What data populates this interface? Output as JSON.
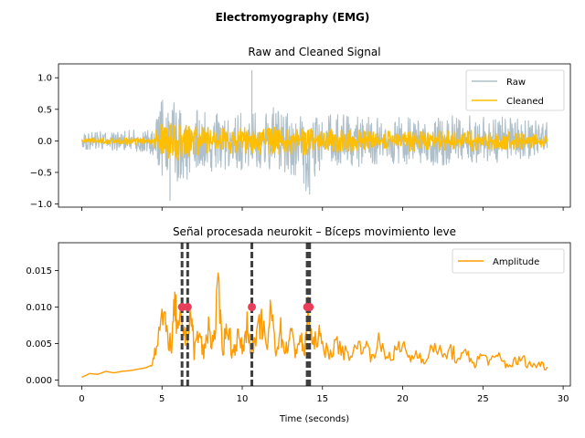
{
  "figure": {
    "suptitle": "Electromyography (EMG)"
  },
  "chart_data": [
    {
      "type": "line",
      "title": "Raw and Cleaned Signal",
      "xlabel": "",
      "ylabel": "",
      "xlim": [
        -1.45,
        30.45
      ],
      "ylim": [
        -1.05,
        1.22
      ],
      "x_ticks": [
        0,
        5,
        10,
        15,
        20,
        25,
        30
      ],
      "y_ticks": [
        -1.0,
        -0.5,
        0.0,
        0.5,
        1.0
      ],
      "y_tick_labels": [
        "−1.0",
        "−0.5",
        "0.0",
        "0.5",
        "1.0"
      ],
      "legend": {
        "position": "top-right",
        "entries": [
          "Raw",
          "Cleaned"
        ]
      },
      "series": [
        {
          "name": "Raw",
          "color": "#aebfc9",
          "envelope": {
            "x": [
              0,
              1,
              2,
              3,
              4,
              4.5,
              5,
              5.5,
              6,
              6.5,
              7,
              8,
              9,
              10,
              11,
              12,
              13,
              14,
              15,
              16,
              18,
              20,
              22,
              24,
              26,
              29
            ],
            "upper": [
              0.15,
              0.15,
              0.15,
              0.17,
              0.18,
              0.25,
              0.7,
              0.6,
              0.62,
              0.55,
              0.5,
              0.45,
              0.42,
              0.5,
              0.45,
              0.55,
              0.45,
              0.4,
              0.35,
              0.5,
              0.38,
              0.38,
              0.38,
              0.45,
              0.4,
              0.3
            ],
            "lower": [
              -0.15,
              -0.15,
              -0.15,
              -0.17,
              -0.18,
              -0.25,
              -0.6,
              -0.75,
              -0.8,
              -0.7,
              -0.5,
              -0.5,
              -0.45,
              -0.5,
              -0.45,
              -0.5,
              -0.6,
              -0.85,
              -0.4,
              -0.45,
              -0.38,
              -0.38,
              -0.4,
              -0.35,
              -0.35,
              -0.3
            ]
          },
          "spikes": [
            {
              "x": 10.6,
              "y": 1.12
            },
            {
              "x": 5.5,
              "y": -0.95
            },
            {
              "x": 14.2,
              "y": -0.85
            }
          ]
        },
        {
          "name": "Cleaned",
          "color": "#ffbe00",
          "envelope": {
            "x": [
              0,
              1,
              2,
              3,
              4,
              4.5,
              5,
              5.5,
              6,
              6.5,
              7,
              8,
              9,
              10,
              11,
              12,
              13,
              14,
              15,
              16,
              18,
              20,
              22,
              24,
              26,
              29
            ],
            "upper": [
              0.05,
              0.05,
              0.05,
              0.06,
              0.07,
              0.12,
              0.3,
              0.28,
              0.3,
              0.26,
              0.24,
              0.22,
              0.2,
              0.23,
              0.21,
              0.24,
              0.2,
              0.2,
              0.16,
              0.2,
              0.16,
              0.16,
              0.16,
              0.18,
              0.16,
              0.1
            ],
            "lower": [
              -0.05,
              -0.05,
              -0.05,
              -0.06,
              -0.07,
              -0.12,
              -0.3,
              -0.3,
              -0.32,
              -0.28,
              -0.24,
              -0.22,
              -0.2,
              -0.23,
              -0.21,
              -0.24,
              -0.22,
              -0.26,
              -0.16,
              -0.2,
              -0.16,
              -0.16,
              -0.16,
              -0.16,
              -0.16,
              -0.1
            ]
          }
        }
      ]
    },
    {
      "type": "line",
      "title": "Señal procesada neurokit – Bíceps movimiento leve",
      "xlabel": "Time (seconds)",
      "ylabel": "",
      "xlim": [
        -1.45,
        30.45
      ],
      "ylim": [
        -0.0008,
        0.0188
      ],
      "x_ticks": [
        0,
        5,
        10,
        15,
        20,
        25,
        30
      ],
      "y_ticks": [
        0.0,
        0.005,
        0.01,
        0.015
      ],
      "y_tick_labels": [
        "0.000",
        "0.005",
        "0.010",
        "0.015"
      ],
      "legend": {
        "position": "top-right",
        "entries": [
          "Amplitude"
        ]
      },
      "series": [
        {
          "name": "Amplitude",
          "color": "#ff9a00",
          "x": [
            0,
            0.5,
            1,
            1.5,
            2,
            2.5,
            3,
            3.5,
            4,
            4.3,
            4.6,
            5,
            5.3,
            5.6,
            5.8,
            6,
            6.2,
            6.5,
            6.8,
            7,
            7.3,
            7.6,
            7.9,
            8.2,
            8.5,
            8.8,
            9.1,
            9.4,
            9.7,
            10,
            10.3,
            10.6,
            10.9,
            11.2,
            11.5,
            11.8,
            12.1,
            12.4,
            12.7,
            13,
            13.3,
            13.6,
            13.9,
            14.1,
            14.4,
            14.7,
            15,
            15.5,
            16,
            16.5,
            17,
            17.5,
            18,
            18.5,
            19,
            19.5,
            20,
            20.5,
            21,
            21.5,
            22,
            22.5,
            23,
            23.5,
            24,
            24.5,
            25,
            25.5,
            26,
            26.5,
            27,
            27.5,
            28,
            28.5,
            29
          ],
          "values": [
            0.0004,
            0.0009,
            0.0008,
            0.0012,
            0.001,
            0.0012,
            0.0013,
            0.0015,
            0.0017,
            0.002,
            0.0045,
            0.0085,
            0.0065,
            0.0045,
            0.0105,
            0.006,
            0.0085,
            0.0055,
            0.0095,
            0.004,
            0.0065,
            0.0035,
            0.0075,
            0.0045,
            0.0118,
            0.0045,
            0.0078,
            0.0035,
            0.006,
            0.0042,
            0.0074,
            0.0043,
            0.0055,
            0.0085,
            0.004,
            0.0095,
            0.0042,
            0.0067,
            0.0038,
            0.0065,
            0.004,
            0.0058,
            0.0036,
            0.0098,
            0.0042,
            0.0065,
            0.0045,
            0.004,
            0.0048,
            0.0035,
            0.004,
            0.0052,
            0.0035,
            0.005,
            0.0032,
            0.0038,
            0.0045,
            0.003,
            0.0038,
            0.0025,
            0.0052,
            0.003,
            0.0042,
            0.0025,
            0.0038,
            0.0022,
            0.0035,
            0.0025,
            0.0032,
            0.002,
            0.0025,
            0.0028,
            0.002,
            0.0022,
            0.0018
          ]
        }
      ],
      "vlines": [
        6.25,
        6.6,
        10.6,
        14.05,
        14.2
      ],
      "vline_color": "#404040",
      "markers": {
        "color": "#e83e5a",
        "points": [
          {
            "x": 6.25,
            "y": 0.01
          },
          {
            "x": 6.6,
            "y": 0.01
          },
          {
            "x": 10.6,
            "y": 0.01
          },
          {
            "x": 14.05,
            "y": 0.01
          },
          {
            "x": 14.2,
            "y": 0.01
          }
        ]
      }
    }
  ]
}
